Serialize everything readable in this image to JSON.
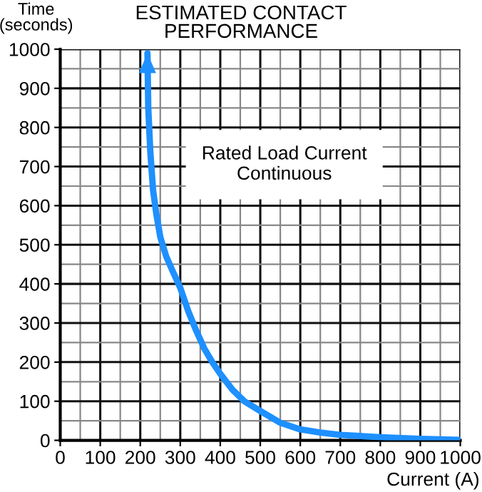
{
  "chart_data": {
    "type": "line",
    "title": "ESTIMATED CONTACT\nPERFORMANCE",
    "xlabel": "Current (A)",
    "ylabel": "Time\n(seconds)",
    "annotations": [
      "Rated Load Current\nContinuous"
    ],
    "x": [
      218,
      220,
      225,
      232,
      240,
      250,
      265,
      280,
      300,
      320,
      340,
      360,
      380,
      400,
      430,
      460,
      500,
      550,
      600,
      650,
      700,
      800,
      900,
      1000
    ],
    "series": [
      {
        "color": "#1e90ff",
        "values": [
          990,
          850,
          740,
          640,
          580,
          520,
          470,
          435,
          390,
          330,
          280,
          235,
          200,
          170,
          130,
          100,
          75,
          45,
          28,
          20,
          14,
          8,
          4,
          1
        ]
      }
    ],
    "xlim": [
      0,
      1000
    ],
    "ylim": [
      0,
      1000
    ],
    "xticks": [
      0,
      100,
      200,
      300,
      400,
      500,
      600,
      700,
      800,
      900,
      1000
    ],
    "yticks": [
      0,
      100,
      200,
      300,
      400,
      500,
      600,
      700,
      800,
      900,
      1000
    ],
    "grid": true,
    "marker": "none",
    "line_style": "solid"
  }
}
